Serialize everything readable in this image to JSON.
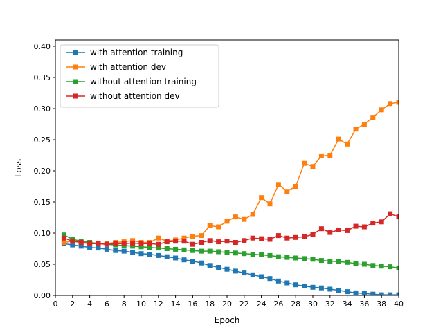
{
  "chart_data": {
    "type": "line",
    "title": "",
    "xlabel": "Epoch",
    "ylabel": "Loss",
    "xlim": [
      0,
      40
    ],
    "ylim": [
      0,
      0.41
    ],
    "xticks": [
      0,
      2,
      4,
      6,
      8,
      10,
      12,
      14,
      16,
      18,
      20,
      22,
      24,
      26,
      28,
      30,
      32,
      34,
      36,
      38,
      40
    ],
    "xtick_labels": [
      "0",
      "2",
      "4",
      "6",
      "8",
      "10",
      "12",
      "14",
      "16",
      "18",
      "20",
      "22",
      "24",
      "26",
      "28",
      "30",
      "32",
      "34",
      "36",
      "38",
      "40"
    ],
    "yticks": [
      0,
      0.05,
      0.1,
      0.15,
      0.2,
      0.25,
      0.3,
      0.35,
      0.4
    ],
    "ytick_labels": [
      "0.00",
      "0.05",
      "0.10",
      "0.15",
      "0.20",
      "0.25",
      "0.30",
      "0.35",
      "0.40"
    ],
    "grid": false,
    "legend_position": "upper-left",
    "marker": "square",
    "x": [
      1,
      2,
      3,
      4,
      5,
      6,
      7,
      8,
      9,
      10,
      11,
      12,
      13,
      14,
      15,
      16,
      17,
      18,
      19,
      20,
      21,
      22,
      23,
      24,
      25,
      26,
      27,
      28,
      29,
      30,
      31,
      32,
      33,
      34,
      35,
      36,
      37,
      38,
      39,
      40
    ],
    "series": [
      {
        "name": "with attention training",
        "color": "#1f77b4",
        "values": [
          0.083,
          0.081,
          0.079,
          0.077,
          0.076,
          0.074,
          0.072,
          0.071,
          0.069,
          0.067,
          0.066,
          0.064,
          0.062,
          0.06,
          0.057,
          0.055,
          0.052,
          0.048,
          0.045,
          0.042,
          0.039,
          0.036,
          0.033,
          0.03,
          0.027,
          0.023,
          0.02,
          0.017,
          0.015,
          0.013,
          0.012,
          0.01,
          0.008,
          0.006,
          0.004,
          0.003,
          0.002,
          0.001,
          0.001,
          0.001
        ]
      },
      {
        "name": "with attention dev",
        "color": "#ff7f0e",
        "values": [
          0.085,
          0.087,
          0.085,
          0.084,
          0.084,
          0.083,
          0.085,
          0.086,
          0.088,
          0.085,
          0.085,
          0.092,
          0.087,
          0.089,
          0.092,
          0.095,
          0.096,
          0.112,
          0.11,
          0.119,
          0.126,
          0.122,
          0.13,
          0.157,
          0.147,
          0.178,
          0.167,
          0.175,
          0.212,
          0.207,
          0.224,
          0.225,
          0.251,
          0.243,
          0.267,
          0.275,
          0.286,
          0.298,
          0.308,
          0.31
        ]
      },
      {
        "name": "without attention training",
        "color": "#2ca02c",
        "values": [
          0.097,
          0.09,
          0.087,
          0.085,
          0.083,
          0.082,
          0.081,
          0.08,
          0.079,
          0.078,
          0.077,
          0.076,
          0.075,
          0.074,
          0.073,
          0.072,
          0.071,
          0.071,
          0.07,
          0.069,
          0.068,
          0.067,
          0.066,
          0.065,
          0.064,
          0.062,
          0.061,
          0.06,
          0.059,
          0.058,
          0.056,
          0.055,
          0.054,
          0.053,
          0.051,
          0.05,
          0.048,
          0.047,
          0.046,
          0.044
        ]
      },
      {
        "name": "without attention dev",
        "color": "#d62728",
        "values": [
          0.092,
          0.087,
          0.085,
          0.083,
          0.083,
          0.082,
          0.083,
          0.083,
          0.084,
          0.083,
          0.083,
          0.082,
          0.086,
          0.087,
          0.087,
          0.082,
          0.085,
          0.088,
          0.086,
          0.087,
          0.085,
          0.088,
          0.092,
          0.091,
          0.09,
          0.096,
          0.092,
          0.093,
          0.094,
          0.098,
          0.107,
          0.101,
          0.105,
          0.104,
          0.111,
          0.11,
          0.116,
          0.118,
          0.131,
          0.126
        ]
      }
    ]
  }
}
